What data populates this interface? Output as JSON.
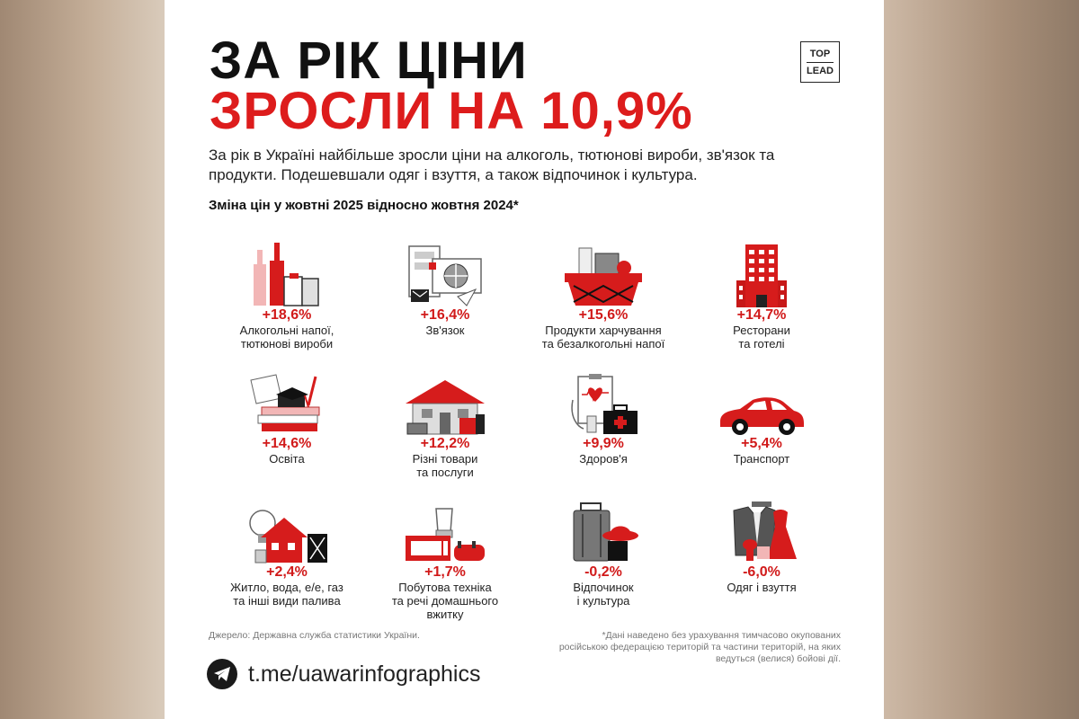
{
  "title": {
    "line1": "ЗА РІК ЦІНИ",
    "line2": "ЗРОСЛИ НА 10,9%"
  },
  "logo": {
    "top": "TOP",
    "bottom": "LEAD"
  },
  "intro": "За рік в Україні найбільше зросли ціни на алкоголь, тютюнові вироби, зв'язок та продукти. Подешевшали одяг і взуття, а також відпочинок і культура.",
  "subtitle": "Зміна цін у жовтні 2025 відносно жовтня 2024*",
  "items": [
    {
      "value": "+18,6%",
      "label": "Алкогольні напої,\nтютюнові вироби",
      "icon": "bottles-icon"
    },
    {
      "value": "+16,4%",
      "label": "Зв'язок",
      "icon": "communication-icon"
    },
    {
      "value": "+15,6%",
      "label": "Продукти харчування\nта безалкогольні напої",
      "icon": "grocery-basket-icon"
    },
    {
      "value": "+14,7%",
      "label": "Ресторани\nта готелі",
      "icon": "hotel-icon"
    },
    {
      "value": "+14,6%",
      "label": "Освіта",
      "icon": "education-icon"
    },
    {
      "value": "+12,2%",
      "label": "Різні товари\nта послуги",
      "icon": "house-goods-icon"
    },
    {
      "value": "+9,9%",
      "label": "Здоров'я",
      "icon": "health-icon"
    },
    {
      "value": "+5,4%",
      "label": "Транспорт",
      "icon": "car-icon"
    },
    {
      "value": "+2,4%",
      "label": "Житло, вода, е/е, газ\nта інші види палива",
      "icon": "utilities-icon"
    },
    {
      "value": "+1,7%",
      "label": "Побутова техніка\nта речі домашнього\nвжитку",
      "icon": "appliances-icon"
    },
    {
      "value": "-0,2%",
      "label": "Відпочинок\nі культура",
      "icon": "luggage-icon"
    },
    {
      "value": "-6,0%",
      "label": "Одяг і взуття",
      "icon": "clothing-icon"
    }
  ],
  "source": "Джерело: Державна служба статистики України.",
  "footnote": "*Дані наведено без урахування тимчасово окупованих російською федерацією територій та частини територій, на яких ведуться (велися) бойові дії.",
  "telegram": {
    "icon": "telegram-icon",
    "link": "t.me/uawarinfographics"
  },
  "colors": {
    "accent": "#dd1c1c",
    "text": "#111111"
  }
}
